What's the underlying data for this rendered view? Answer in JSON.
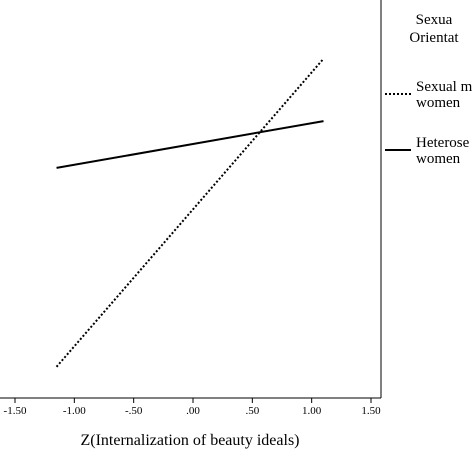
{
  "chart_data": {
    "type": "line",
    "xlabel": "Z(Internalization of beauty ideals)",
    "ylabel": "",
    "xlim": [
      -1.5,
      1.5
    ],
    "x_ticks": [
      "-1.50",
      "-1.00",
      "-.50",
      ".00",
      ".50",
      "1.00",
      "1.50"
    ],
    "ylim": [
      0,
      1
    ],
    "grid": false,
    "legend": {
      "title_lines": [
        "Sexua",
        "Orientat"
      ],
      "placement": "right"
    },
    "series": [
      {
        "name_lines": [
          "Sexual m",
          "women"
        ],
        "style": "dotted",
        "x": [
          -1.15,
          1.1
        ],
        "y": [
          0.08,
          0.87
        ]
      },
      {
        "name_lines": [
          "Heterose",
          "women"
        ],
        "style": "solid",
        "x": [
          -1.15,
          1.1
        ],
        "y": [
          0.59,
          0.71
        ]
      }
    ]
  }
}
